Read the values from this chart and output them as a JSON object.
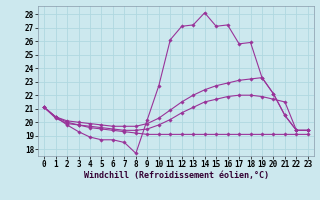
{
  "xlabel": "Windchill (Refroidissement éolien,°C)",
  "x_ticks": [
    0,
    1,
    2,
    3,
    4,
    5,
    6,
    7,
    8,
    9,
    10,
    11,
    12,
    13,
    14,
    15,
    16,
    17,
    18,
    19,
    20,
    21,
    22,
    23
  ],
  "y_ticks": [
    18,
    19,
    20,
    21,
    22,
    23,
    24,
    25,
    26,
    27,
    28
  ],
  "ylim": [
    17.5,
    28.6
  ],
  "xlim": [
    -0.5,
    23.5
  ],
  "bg_color": "#cce8ee",
  "line_color": "#993399",
  "grid_color": "#b0d8e0",
  "series1": [
    21.1,
    20.4,
    19.8,
    19.3,
    18.9,
    18.7,
    18.7,
    18.5,
    17.7,
    20.2,
    22.7,
    26.1,
    27.1,
    27.2,
    28.1,
    27.1,
    27.2,
    25.8,
    25.9,
    23.3,
    22.1,
    20.5,
    19.4,
    19.4
  ],
  "series2": [
    21.1,
    20.3,
    19.9,
    19.8,
    19.6,
    19.5,
    19.4,
    19.3,
    19.2,
    19.1,
    19.1,
    19.1,
    19.1,
    19.1,
    19.1,
    19.1,
    19.1,
    19.1,
    19.1,
    19.1,
    19.1,
    19.1,
    19.1,
    19.1
  ],
  "series3": [
    21.1,
    20.4,
    20.1,
    20.0,
    19.9,
    19.8,
    19.7,
    19.7,
    19.7,
    19.9,
    20.3,
    20.9,
    21.5,
    22.0,
    22.4,
    22.7,
    22.9,
    23.1,
    23.2,
    23.3,
    22.1,
    20.5,
    19.4,
    19.4
  ],
  "series4": [
    21.1,
    20.4,
    20.0,
    19.8,
    19.7,
    19.6,
    19.5,
    19.4,
    19.4,
    19.5,
    19.8,
    20.2,
    20.7,
    21.1,
    21.5,
    21.7,
    21.9,
    22.0,
    22.0,
    21.9,
    21.7,
    21.5,
    19.4,
    19.4
  ],
  "spine_color": "#8899aa",
  "tick_fontsize": 5.5,
  "xlabel_fontsize": 6.0
}
